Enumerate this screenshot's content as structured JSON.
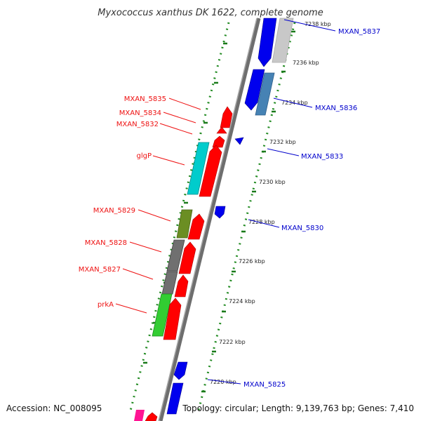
{
  "title": "Myxococcus xanthus DK 1622, complete genome",
  "footer": {
    "accession": "Accession: NC_008095",
    "topology": "Topology: circular; Length: 9,139,763 bp; Genes: 7,410"
  },
  "colors": {
    "label_left": "#ee1111",
    "label_right": "#0000cc",
    "backbone": "#808080",
    "dots": "#228b22",
    "gene_red": "#ff0000",
    "gene_blue": "#0000ee",
    "gene_cyan": "#00cccc",
    "gene_olive": "#6b8e23",
    "gene_gray": "#707070",
    "gene_green": "#32cd32",
    "gene_lightgray": "#c0c0c0",
    "gene_steelblue": "#4682b4",
    "gene_magenta": "#ff1493"
  },
  "kbp_ticks": [
    "7238 kbp",
    "7236 kbp",
    "7234 kbp",
    "7232 kbp",
    "7230 kbp",
    "7228 kbp",
    "7226 kbp",
    "7224 kbp",
    "7222 kbp",
    "7220 kbp"
  ],
  "left_labels": [
    "MXAN_5835",
    "MXAN_5834",
    "MXAN_5832",
    "glgP",
    "MXAN_5829",
    "MXAN_5828",
    "MXAN_5827",
    "prkA"
  ],
  "right_labels": [
    "MXAN_5837",
    "MXAN_5836",
    "MXAN_5833",
    "MXAN_5830",
    "MXAN_5825"
  ]
}
